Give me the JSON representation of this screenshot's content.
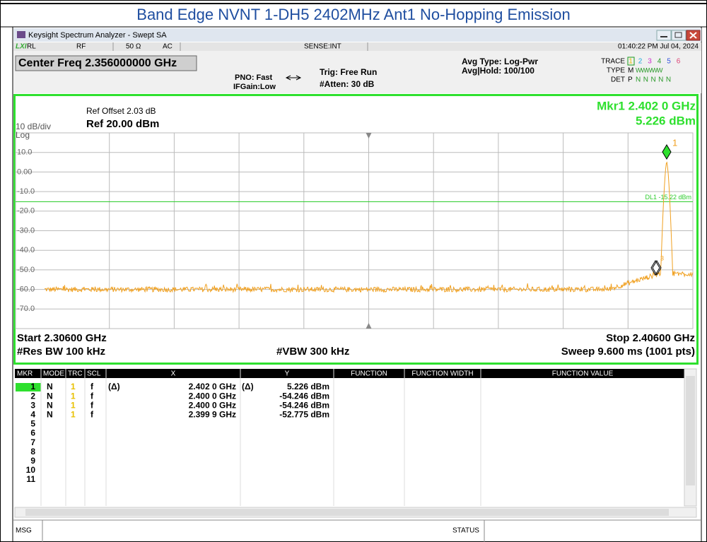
{
  "header": {
    "title": "Band Edge NVNT 1-DH5 2402MHz Ant1 No-Hopping Emission"
  },
  "window": {
    "title": "Keysight Spectrum Analyzer - Swept SA",
    "status": {
      "logo": "LXI",
      "rl": "RL",
      "rf": "RF",
      "impedance": "50 Ω",
      "coupling": "AC",
      "sense": "SENSE:INT",
      "datetime": "01:40:22 PM Jul 04, 2024"
    }
  },
  "settings": {
    "center_freq": "Center Freq 2.356000000 GHz",
    "pno": "PNO: Fast",
    "ifgain": "IFGain:Low",
    "trig": "Trig: Free Run",
    "atten": "#Atten: 30 dB",
    "avg_type": "Avg Type: Log-Pwr",
    "avg_hold": "Avg|Hold: 100/100",
    "trace_label": "TRACE",
    "trace_numbers": [
      "1",
      "2",
      "3",
      "4",
      "5",
      "6"
    ],
    "type_label": "TYPE",
    "type_first": "M",
    "type_rest": "WWWWW",
    "det_label": "DET",
    "det_first": "P",
    "det_rest": "NNNNN"
  },
  "plot": {
    "ref_offset": "Ref Offset 2.03 dB",
    "ref_level": "Ref 20.00 dBm",
    "scale": "10 dB/div",
    "scale_type": "Log",
    "marker_freq": "Mkr1 2.402 0 GHz",
    "marker_level": "5.226 dBm",
    "y_labels": [
      "10.0",
      "0.00",
      "-10.0",
      "-20.0",
      "-30.0",
      "-40.0",
      "-50.0",
      "-60.0",
      "-70.0"
    ],
    "display_line": "DL1 -15.22 dBm",
    "marker_label": "1",
    "marker_label_small": "3",
    "start": "Start 2.30600 GHz",
    "stop": "Stop 2.40600 GHz",
    "res_bw": "#Res BW 100 kHz",
    "vbw": "#VBW 300 kHz",
    "sweep": "Sweep  9.600 ms (1001 pts)"
  },
  "table": {
    "header": [
      "MKR",
      "MODE",
      "TRC",
      "SCL",
      "X",
      "Y",
      "FUNCTION",
      "FUNCTION WIDTH",
      "FUNCTION VALUE"
    ],
    "rows": [
      {
        "mkr": "1",
        "mode": "N",
        "trc": "1",
        "scl": "f",
        "x_prefix": "(Δ)",
        "x": "2.402 0 GHz",
        "y_prefix": "(Δ)",
        "y": "5.226 dBm"
      },
      {
        "mkr": "2",
        "mode": "N",
        "trc": "1",
        "scl": "f",
        "x": "2.400 0 GHz",
        "y": "-54.246 dBm"
      },
      {
        "mkr": "3",
        "mode": "N",
        "trc": "1",
        "scl": "f",
        "x": "2.400 0 GHz",
        "y": "-54.246 dBm"
      },
      {
        "mkr": "4",
        "mode": "N",
        "trc": "1",
        "scl": "f",
        "x": "2.399 9 GHz",
        "y": "-52.775 dBm"
      },
      {
        "mkr": "5"
      },
      {
        "mkr": "6"
      },
      {
        "mkr": "7"
      },
      {
        "mkr": "8"
      },
      {
        "mkr": "9"
      },
      {
        "mkr": "10"
      },
      {
        "mkr": "11"
      }
    ]
  },
  "footer": {
    "msg": "MSG",
    "status": "STATUS"
  }
}
